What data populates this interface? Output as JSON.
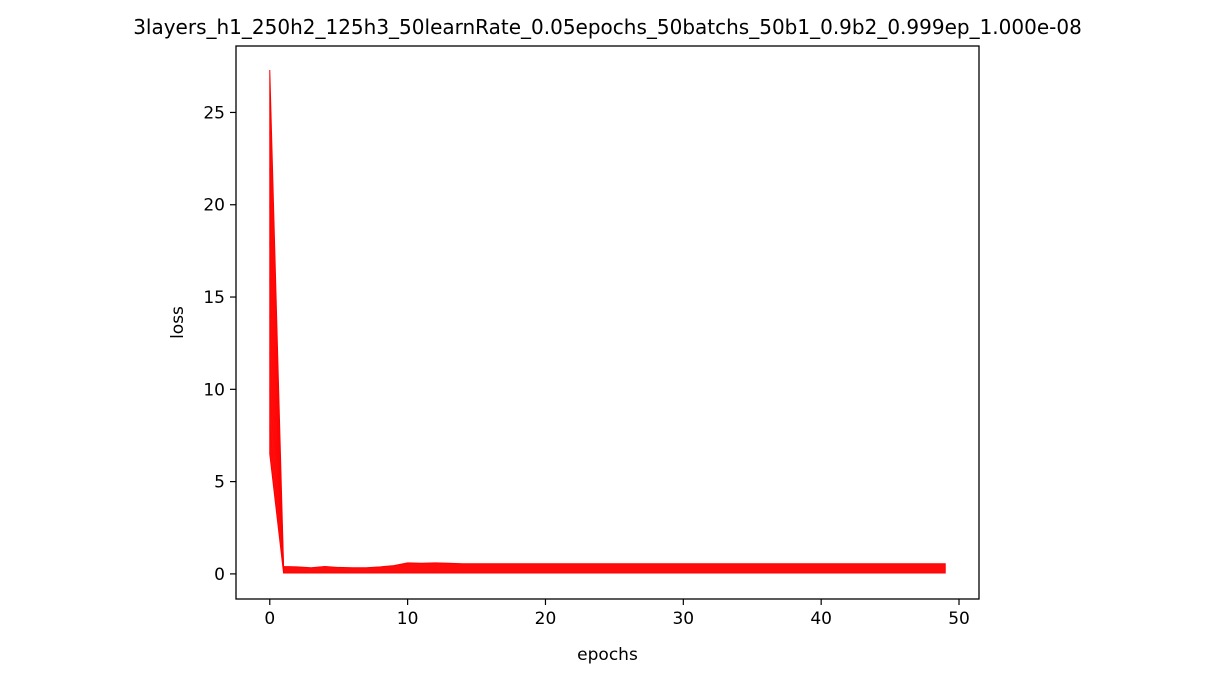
{
  "chart_data": {
    "type": "line",
    "title": "3layers_h1_250h2_125h3_50learnRate_0.05epochs_50batchs_50b1_0.9b2_0.999ep_1.000e-08",
    "xlabel": "epochs",
    "ylabel": "loss",
    "xlim": [
      -2.45,
      51.45
    ],
    "ylim": [
      -1.36,
      28.6
    ],
    "xticks": [
      0,
      10,
      20,
      30,
      40,
      50
    ],
    "yticks": [
      0,
      5,
      10,
      15,
      20,
      25
    ],
    "grid": false,
    "legend": "none",
    "color": "#ff0000",
    "band": {
      "x": [
        0,
        1,
        2,
        3,
        4,
        5,
        6,
        7,
        8,
        9,
        10,
        11,
        12,
        13,
        14,
        15,
        20,
        25,
        30,
        35,
        40,
        45,
        49
      ],
      "lower": [
        6.5,
        0.05,
        0.05,
        0.05,
        0.05,
        0.05,
        0.05,
        0.05,
        0.05,
        0.05,
        0.05,
        0.05,
        0.05,
        0.05,
        0.05,
        0.05,
        0.05,
        0.05,
        0.05,
        0.05,
        0.05,
        0.05,
        0.05
      ],
      "upper": [
        27.3,
        0.4,
        0.38,
        0.33,
        0.4,
        0.35,
        0.33,
        0.33,
        0.38,
        0.45,
        0.6,
        0.58,
        0.6,
        0.58,
        0.55,
        0.55,
        0.55,
        0.55,
        0.55,
        0.55,
        0.55,
        0.55,
        0.55
      ]
    }
  }
}
